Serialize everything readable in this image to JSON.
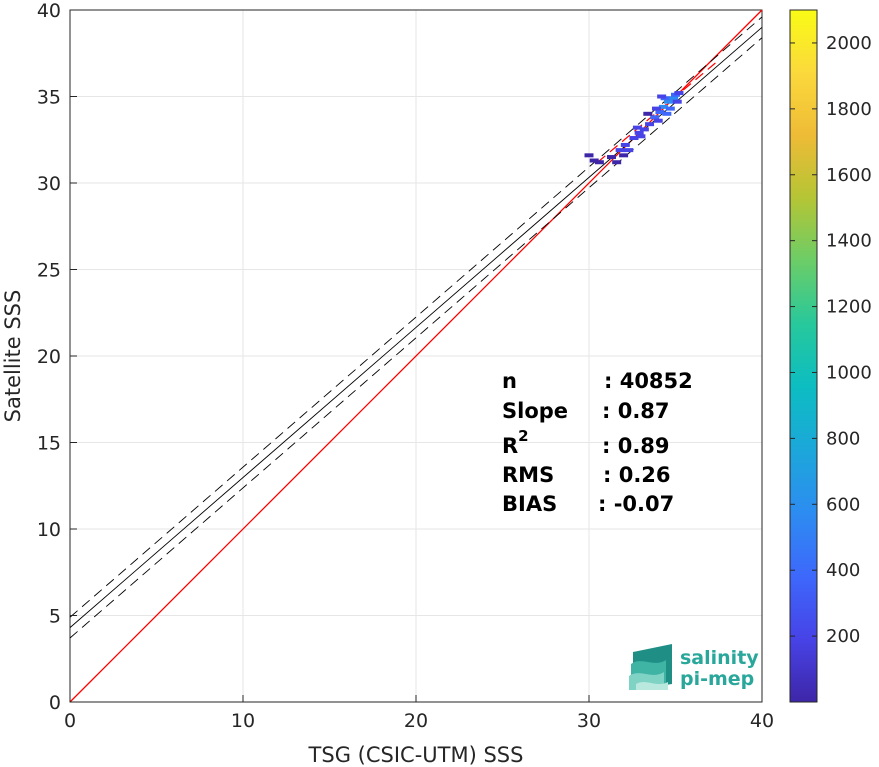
{
  "chart_data": {
    "type": "heatmap",
    "xlabel": "TSG (CSIC-UTM) SSS",
    "ylabel": "Satellite SSS",
    "xlim": [
      0,
      40
    ],
    "ylim": [
      0,
      40
    ],
    "xticks": [
      0,
      10,
      20,
      30,
      40
    ],
    "yticks": [
      0,
      5,
      10,
      15,
      20,
      25,
      30,
      35,
      40
    ],
    "grid": true,
    "identity_line": {
      "color": "#ff0000",
      "from": [
        0,
        0
      ],
      "to": [
        40,
        40
      ]
    },
    "fit_line": {
      "color": "#000000",
      "intercept": 4.3,
      "slope": 0.8675
    },
    "fit_bounds": {
      "color": "#000000",
      "style": "dashed",
      "intercepts": [
        3.7,
        4.9
      ],
      "slope": 0.8675
    },
    "red_dashed_segment": {
      "color": "#ff0000",
      "from": [
        30.5,
        31.2
      ],
      "to": [
        37.5,
        37.1
      ]
    },
    "density_points": [
      {
        "x": 30.0,
        "y": 31.6,
        "count": 40
      },
      {
        "x": 30.3,
        "y": 31.3,
        "count": 80
      },
      {
        "x": 30.6,
        "y": 31.2,
        "count": 60
      },
      {
        "x": 31.6,
        "y": 31.2,
        "count": 50
      },
      {
        "x": 31.8,
        "y": 31.9,
        "count": 120
      },
      {
        "x": 32.1,
        "y": 32.2,
        "count": 180
      },
      {
        "x": 32.3,
        "y": 31.9,
        "count": 140
      },
      {
        "x": 32.0,
        "y": 31.6,
        "count": 90
      },
      {
        "x": 32.6,
        "y": 32.6,
        "count": 160
      },
      {
        "x": 32.9,
        "y": 32.9,
        "count": 220
      },
      {
        "x": 33.2,
        "y": 33.1,
        "count": 140
      },
      {
        "x": 32.8,
        "y": 33.2,
        "count": 100
      },
      {
        "x": 33.5,
        "y": 33.4,
        "count": 200
      },
      {
        "x": 33.8,
        "y": 33.8,
        "count": 300
      },
      {
        "x": 34.1,
        "y": 34.1,
        "count": 420
      },
      {
        "x": 34.0,
        "y": 33.6,
        "count": 260
      },
      {
        "x": 34.3,
        "y": 34.4,
        "count": 520
      },
      {
        "x": 34.5,
        "y": 34.0,
        "count": 450
      },
      {
        "x": 34.6,
        "y": 34.7,
        "count": 640
      },
      {
        "x": 34.7,
        "y": 34.3,
        "count": 380
      },
      {
        "x": 34.9,
        "y": 34.9,
        "count": 560
      },
      {
        "x": 35.0,
        "y": 35.1,
        "count": 420
      },
      {
        "x": 34.4,
        "y": 34.9,
        "count": 300
      },
      {
        "x": 33.9,
        "y": 34.3,
        "count": 180
      },
      {
        "x": 35.1,
        "y": 34.7,
        "count": 240
      },
      {
        "x": 34.2,
        "y": 35.0,
        "count": 120
      },
      {
        "x": 35.2,
        "y": 35.2,
        "count": 200
      },
      {
        "x": 33.4,
        "y": 34.0,
        "count": 90
      },
      {
        "x": 31.3,
        "y": 31.5,
        "count": 60
      },
      {
        "x": 33.0,
        "y": 32.7,
        "count": 110
      }
    ],
    "colorbar": {
      "range": [
        0,
        2100
      ],
      "ticks": [
        200,
        400,
        600,
        800,
        1000,
        1200,
        1400,
        1600,
        1800,
        2000
      ],
      "colormap": [
        "#3e26a8",
        "#4743e7",
        "#3d68fb",
        "#2d8cf1",
        "#1ca7da",
        "#0cbdc2",
        "#27c89c",
        "#6bcd68",
        "#b4c535",
        "#eebb36",
        "#fbd93c",
        "#f9fb15"
      ]
    },
    "stats": [
      {
        "label": "n",
        "value": ": 40852"
      },
      {
        "label": "Slope",
        "value": ": 0.87"
      },
      {
        "label": "R",
        "sup": "2",
        "value": ": 0.89"
      },
      {
        "label": "RMS",
        "value": ": 0.26"
      },
      {
        "label": "BIAS",
        "value": ": -0.07"
      }
    ]
  },
  "logo": {
    "line1": "salinity",
    "line2": "pi-mep"
  }
}
